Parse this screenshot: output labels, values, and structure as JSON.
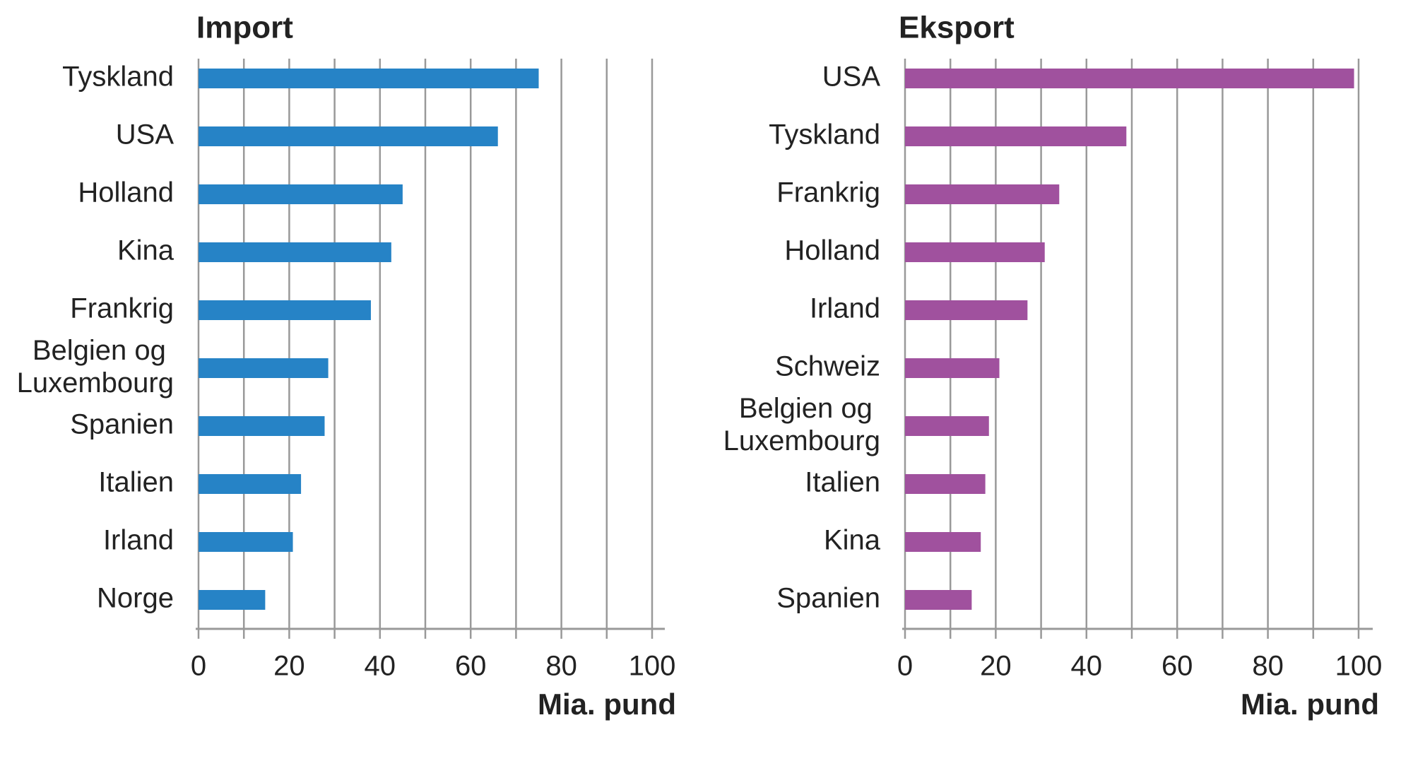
{
  "chart_data": [
    {
      "type": "bar",
      "orientation": "horizontal",
      "title": "Import",
      "x_label": "Mia. pund",
      "categories": [
        "Tyskland",
        "USA",
        "Holland",
        "Kina",
        "Frankrig",
        "Belgien og Luxembourg",
        "Spanien",
        "Italien",
        "Irland",
        "Norge"
      ],
      "values": [
        75,
        66,
        45,
        42.5,
        38,
        28.6,
        27.8,
        22.6,
        20.8,
        14.7
      ],
      "color": "#2683c6",
      "xlim": [
        0,
        100
      ],
      "xticks": [
        0,
        20,
        40,
        60,
        80,
        100
      ],
      "minor_xticks": [
        10,
        30,
        50,
        70,
        90
      ],
      "grid": true
    },
    {
      "type": "bar",
      "orientation": "horizontal",
      "title": "Eksport",
      "x_label": "Mia. pund",
      "categories": [
        "USA",
        "Tyskland",
        "Frankrig",
        "Holland",
        "Irland",
        "Schweiz",
        "Belgien og Luxembourg",
        "Italien",
        "Kina",
        "Spanien"
      ],
      "values": [
        99,
        48.8,
        34,
        30.8,
        27,
        20.8,
        18.5,
        17.7,
        16.7,
        14.7
      ],
      "color": "#a0519e",
      "xlim": [
        0,
        100
      ],
      "xticks": [
        0,
        20,
        40,
        60,
        80,
        100
      ],
      "minor_xticks": [
        10,
        30,
        50,
        70,
        90
      ],
      "grid": true
    }
  ]
}
